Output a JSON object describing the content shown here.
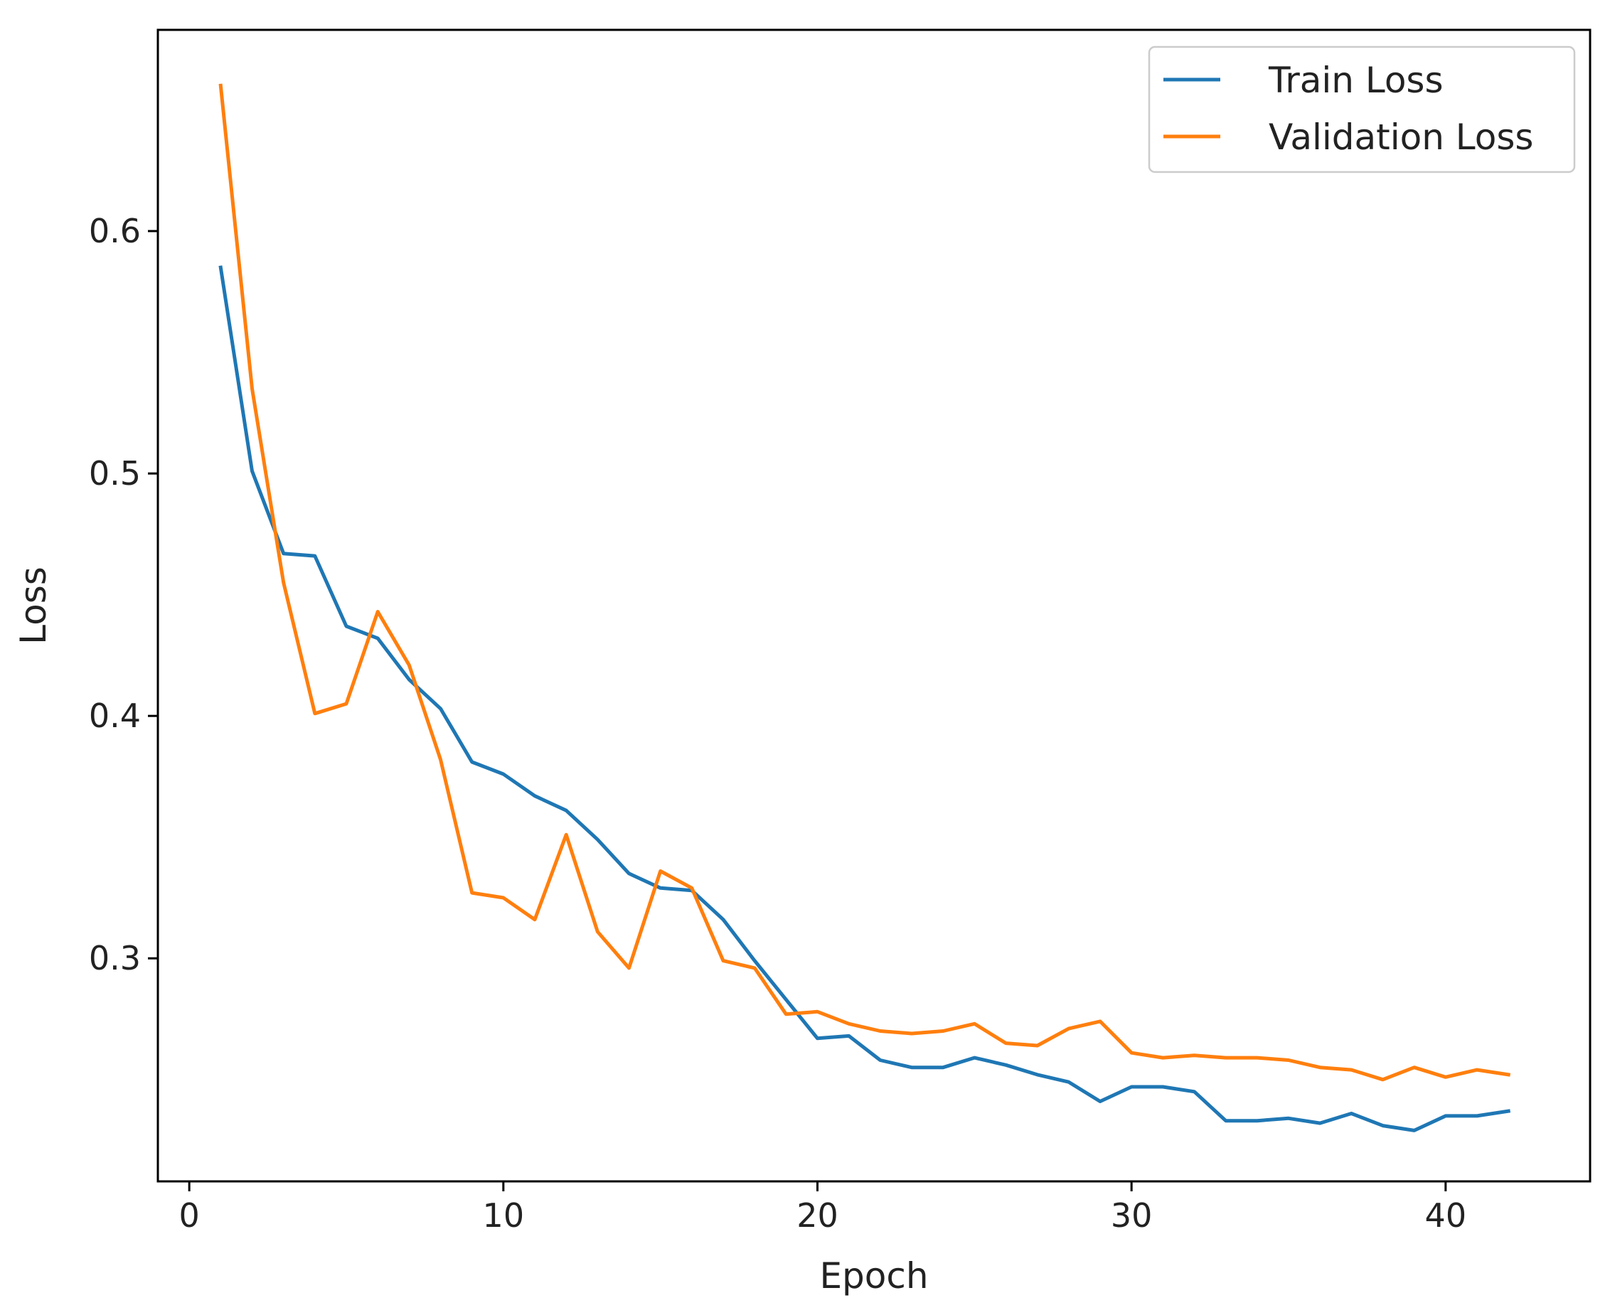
{
  "chart_data": {
    "type": "line",
    "title": "",
    "xlabel": "Epoch",
    "ylabel": "Loss",
    "xlim": [
      -1,
      44.6
    ],
    "ylim": [
      0.208,
      0.683
    ],
    "x_ticks": [
      0,
      10,
      20,
      30,
      40
    ],
    "y_ticks": [
      0.3,
      0.4,
      0.5,
      0.6
    ],
    "x_tick_labels": [
      "0",
      "10",
      "20",
      "30",
      "40"
    ],
    "y_tick_labels": [
      "0.3",
      "0.4",
      "0.5",
      "0.6"
    ],
    "grid": false,
    "legend_position": "top-right",
    "x": [
      1,
      2,
      3,
      4,
      5,
      6,
      7,
      8,
      9,
      10,
      11,
      12,
      13,
      14,
      15,
      16,
      17,
      18,
      19,
      20,
      21,
      22,
      23,
      24,
      25,
      26,
      27,
      28,
      29,
      30,
      31,
      32,
      33,
      34,
      35,
      36,
      37,
      38,
      39,
      40,
      41,
      42
    ],
    "series": [
      {
        "name": "Train Loss",
        "color": "#1f77b4",
        "values": [
          0.585,
          0.501,
          0.467,
          0.466,
          0.437,
          0.432,
          0.415,
          0.403,
          0.381,
          0.376,
          0.367,
          0.361,
          0.349,
          0.335,
          0.329,
          0.328,
          0.316,
          0.299,
          0.283,
          0.267,
          0.268,
          0.258,
          0.255,
          0.255,
          0.259,
          0.256,
          0.252,
          0.249,
          0.241,
          0.247,
          0.247,
          0.245,
          0.233,
          0.233,
          0.234,
          0.232,
          0.236,
          0.231,
          0.229,
          0.235,
          0.235,
          0.237
        ]
      },
      {
        "name": "Validation Loss",
        "color": "#ff7f0e",
        "values": [
          0.66,
          0.535,
          0.455,
          0.401,
          0.405,
          0.443,
          0.421,
          0.382,
          0.327,
          0.325,
          0.316,
          0.351,
          0.311,
          0.296,
          0.336,
          0.329,
          0.299,
          0.296,
          0.277,
          0.278,
          0.273,
          0.27,
          0.269,
          0.27,
          0.273,
          0.265,
          0.264,
          0.271,
          0.274,
          0.261,
          0.259,
          0.26,
          0.259,
          0.259,
          0.258,
          0.255,
          0.254,
          0.25,
          0.255,
          0.251,
          0.254,
          0.252
        ]
      }
    ]
  }
}
